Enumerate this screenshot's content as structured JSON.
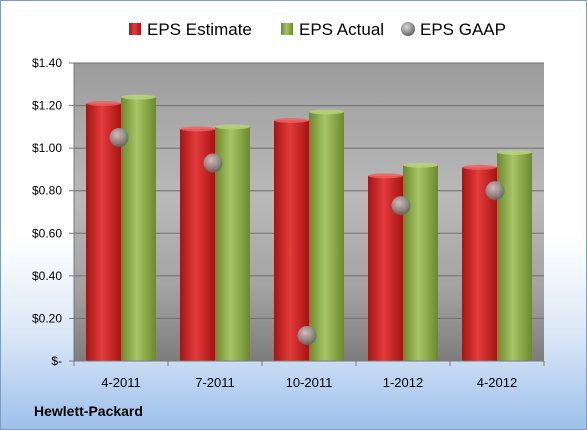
{
  "chart_data": {
    "type": "bar",
    "categories": [
      "4-2011",
      "7-2011",
      "10-2011",
      "1-2012",
      "4-2012"
    ],
    "series": [
      {
        "name": "EPS Estimate",
        "kind": "bar",
        "color": "#cc2222",
        "values": [
          1.21,
          1.09,
          1.13,
          0.87,
          0.91
        ]
      },
      {
        "name": "EPS Actual",
        "kind": "bar",
        "color": "#7fa03a",
        "values": [
          1.24,
          1.1,
          1.17,
          0.92,
          0.98
        ]
      },
      {
        "name": "EPS GAAP",
        "kind": "point",
        "color": "#8a8a8a",
        "values": [
          1.05,
          0.93,
          0.12,
          0.73,
          0.8
        ]
      }
    ],
    "y_ticks": [
      "$-",
      "$0.20",
      "$0.40",
      "$0.60",
      "$0.80",
      "$1.00",
      "$1.20",
      "$1.40"
    ],
    "ylim": [
      0,
      1.4
    ],
    "legend_position": "top",
    "grid": true
  },
  "footer": {
    "company": "Hewlett-Packard"
  }
}
